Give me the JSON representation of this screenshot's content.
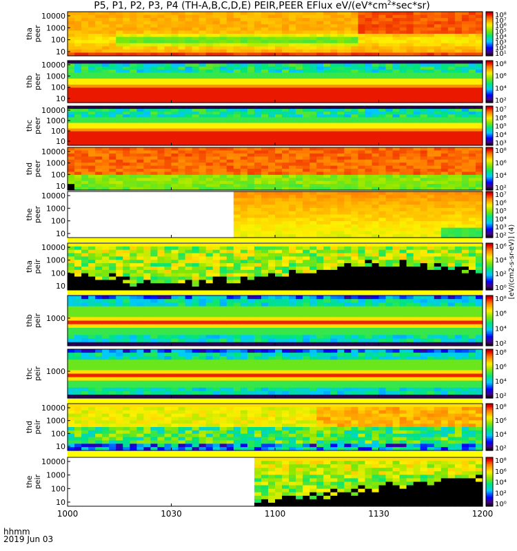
{
  "chart_data": {
    "type": "heatmap",
    "title_pre": "P5, P1, P2, P3, P4 (TH-A,B,C,D,E) PEIR,PEER EFlux eV/(eV*cm",
    "title_sup": "2",
    "title_post": "*sec*sr)",
    "x_tick_labels": [
      "1000",
      "1030",
      "1100",
      "1130",
      "1200"
    ],
    "x_footer": [
      "hhmm",
      "2019 Jun 03"
    ],
    "colorbar_label_top": "[eV/(cm^2-s-sr-eV)] (4)",
    "colorbar_label_bottom": "[eV/(cm2-s-sr-eV)] (4)",
    "panels": [
      {
        "probe": "tha",
        "species": "peer",
        "y_ticks": [
          "10000",
          "1000",
          "100",
          "10"
        ],
        "cbar_ticks": [
          "10⁸",
          "10⁷",
          "10⁶",
          "10⁵",
          "10⁴",
          "10³",
          "10²",
          "10¹"
        ],
        "scheme": "tha_peer",
        "data_start": 0.0
      },
      {
        "probe": "thb",
        "species": "peer",
        "y_ticks": [
          "10000",
          "1000",
          "100",
          "10"
        ],
        "cbar_ticks": [
          "10⁸",
          "10⁶",
          "10⁴",
          "10²"
        ],
        "scheme": "layered_e",
        "data_start": 0.0
      },
      {
        "probe": "thc",
        "species": "peer",
        "y_ticks": [
          "10000",
          "1000",
          "100",
          "10"
        ],
        "cbar_ticks": [
          "10⁷",
          "10⁶",
          "10⁵",
          "10⁴",
          "10³"
        ],
        "scheme": "layered_e",
        "data_start": 0.0
      },
      {
        "probe": "thd",
        "species": "peer",
        "y_ticks": [
          "10000",
          "1000",
          "100",
          "10"
        ],
        "cbar_ticks": [
          "10⁸",
          "10⁶",
          "10⁴",
          "10²"
        ],
        "scheme": "thd_peer",
        "data_start": 0.0
      },
      {
        "probe": "the",
        "species": "peer",
        "y_ticks": [
          "10000",
          "1000",
          "100",
          "10"
        ],
        "cbar_ticks": [
          "10⁷",
          "10⁶",
          "10⁵",
          "10⁴",
          "10³",
          "10²"
        ],
        "scheme": "the_peer",
        "data_start": 0.4
      },
      {
        "probe": "tha",
        "species": "peir",
        "y_ticks": [
          "10000",
          "1000",
          "100",
          "10"
        ],
        "cbar_ticks": [
          "10⁶",
          "10⁴",
          "10²",
          "10⁰"
        ],
        "scheme": "ion_sparse",
        "data_start": 0.0
      },
      {
        "probe": "thb",
        "species": "peir",
        "y_ticks": [
          "1000"
        ],
        "cbar_ticks": [
          "10⁸",
          "10⁶",
          "10⁴",
          "10²"
        ],
        "scheme": "layered_i",
        "data_start": 0.0
      },
      {
        "probe": "thc",
        "species": "peir",
        "y_ticks": [
          "1000"
        ],
        "cbar_ticks": [
          "10⁸",
          "10⁶",
          "10⁴",
          "10²"
        ],
        "scheme": "layered_i",
        "data_start": 0.0
      },
      {
        "probe": "thd",
        "species": "peir",
        "y_ticks": [
          "10000",
          "1000",
          "100",
          "10"
        ],
        "cbar_ticks": [
          "10⁸",
          "10⁶",
          "10⁴",
          "10²"
        ],
        "scheme": "thd_peir",
        "data_start": 0.0
      },
      {
        "probe": "the",
        "species": "peir",
        "y_ticks": [
          "10000",
          "1000",
          "100",
          "10"
        ],
        "cbar_ticks": [
          "10⁸",
          "10⁶",
          "10⁴",
          "10²",
          "10⁰"
        ],
        "scheme": "the_peir",
        "data_start": 0.45
      }
    ]
  }
}
